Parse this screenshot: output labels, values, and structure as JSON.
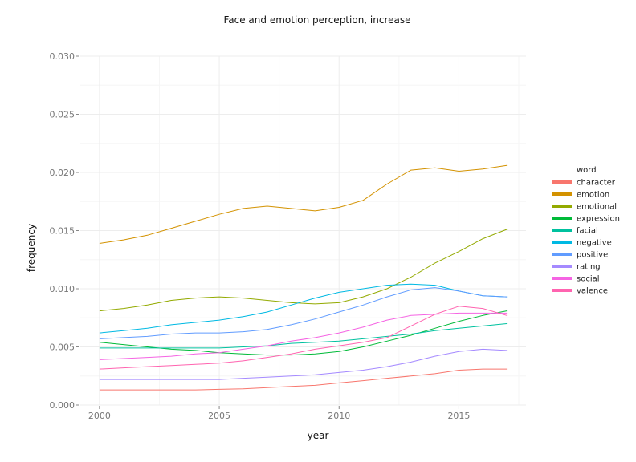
{
  "chart_data": {
    "type": "line",
    "title": "Face and emotion perception, increase",
    "xlabel": "year",
    "ylabel": "frequency",
    "xlim": [
      1999.2,
      2017.8
    ],
    "ylim": [
      0.0,
      0.03
    ],
    "x_ticks": [
      2000,
      2005,
      2010,
      2015
    ],
    "x_tick_labels": [
      "2000",
      "2005",
      "2010",
      "2015"
    ],
    "y_ticks": [
      0.0,
      0.005,
      0.01,
      0.015,
      0.02,
      0.025,
      0.03
    ],
    "y_tick_labels": [
      "0.000",
      "0.005",
      "0.010",
      "0.015",
      "0.020",
      "0.025",
      "0.030"
    ],
    "grid": true,
    "legend": {
      "title": "word",
      "position": "right"
    },
    "x": [
      2000,
      2001,
      2002,
      2003,
      2004,
      2005,
      2006,
      2007,
      2008,
      2009,
      2010,
      2011,
      2012,
      2013,
      2014,
      2015,
      2016,
      2017
    ],
    "series": [
      {
        "name": "character",
        "color": "#f8766d",
        "values": [
          0.0013,
          0.0013,
          0.0013,
          0.0013,
          0.0013,
          0.00135,
          0.0014,
          0.0015,
          0.0016,
          0.0017,
          0.0019,
          0.0021,
          0.0023,
          0.0025,
          0.0027,
          0.003,
          0.0031,
          0.0031
        ]
      },
      {
        "name": "emotion",
        "color": "#d39200",
        "values": [
          0.0139,
          0.0142,
          0.0146,
          0.0152,
          0.0158,
          0.0164,
          0.0169,
          0.0171,
          0.0169,
          0.0167,
          0.017,
          0.0176,
          0.019,
          0.0202,
          0.0204,
          0.0201,
          0.0203,
          0.0206
        ]
      },
      {
        "name": "emotional",
        "color": "#93aa00",
        "values": [
          0.0081,
          0.0083,
          0.0086,
          0.009,
          0.0092,
          0.0093,
          0.0092,
          0.009,
          0.0088,
          0.0087,
          0.0088,
          0.0093,
          0.01,
          0.011,
          0.0122,
          0.0132,
          0.0143,
          0.0151
        ]
      },
      {
        "name": "expression",
        "color": "#00ba38",
        "values": [
          0.0054,
          0.0052,
          0.005,
          0.0048,
          0.0047,
          0.0045,
          0.0044,
          0.0043,
          0.0043,
          0.0044,
          0.0046,
          0.005,
          0.0055,
          0.006,
          0.0066,
          0.0072,
          0.0077,
          0.0081
        ]
      },
      {
        "name": "facial",
        "color": "#00c19f",
        "values": [
          0.0049,
          0.0049,
          0.0049,
          0.0049,
          0.0049,
          0.0049,
          0.005,
          0.0051,
          0.0053,
          0.0054,
          0.0055,
          0.0057,
          0.0059,
          0.0061,
          0.0064,
          0.0066,
          0.0068,
          0.007
        ]
      },
      {
        "name": "negative",
        "color": "#00b9e3",
        "values": [
          0.0062,
          0.0064,
          0.0066,
          0.0069,
          0.0071,
          0.0073,
          0.0076,
          0.008,
          0.0086,
          0.0092,
          0.0097,
          0.01,
          0.0103,
          0.0104,
          0.0103,
          0.0098,
          0.0094,
          0.0093
        ]
      },
      {
        "name": "positive",
        "color": "#619cff",
        "values": [
          0.0057,
          0.0058,
          0.0059,
          0.0061,
          0.0062,
          0.0062,
          0.0063,
          0.0065,
          0.0069,
          0.0074,
          0.008,
          0.0086,
          0.0093,
          0.0099,
          0.0101,
          0.0098,
          0.0094,
          0.0093
        ]
      },
      {
        "name": "rating",
        "color": "#a58aff",
        "values": [
          0.0022,
          0.0022,
          0.0022,
          0.0022,
          0.0022,
          0.0022,
          0.0023,
          0.0024,
          0.0025,
          0.0026,
          0.0028,
          0.003,
          0.0033,
          0.0037,
          0.0042,
          0.0046,
          0.0048,
          0.0047
        ]
      },
      {
        "name": "social",
        "color": "#f564e3",
        "values": [
          0.0039,
          0.004,
          0.0041,
          0.0042,
          0.0044,
          0.0045,
          0.0048,
          0.0051,
          0.0055,
          0.0058,
          0.0062,
          0.0067,
          0.0073,
          0.0077,
          0.0078,
          0.0079,
          0.0079,
          0.0079
        ]
      },
      {
        "name": "valence",
        "color": "#ff64b0",
        "values": [
          0.0031,
          0.0032,
          0.0033,
          0.0034,
          0.0035,
          0.0036,
          0.0038,
          0.0041,
          0.0044,
          0.0048,
          0.0051,
          0.0054,
          0.0058,
          0.0068,
          0.0078,
          0.0085,
          0.0083,
          0.0077
        ]
      }
    ]
  }
}
